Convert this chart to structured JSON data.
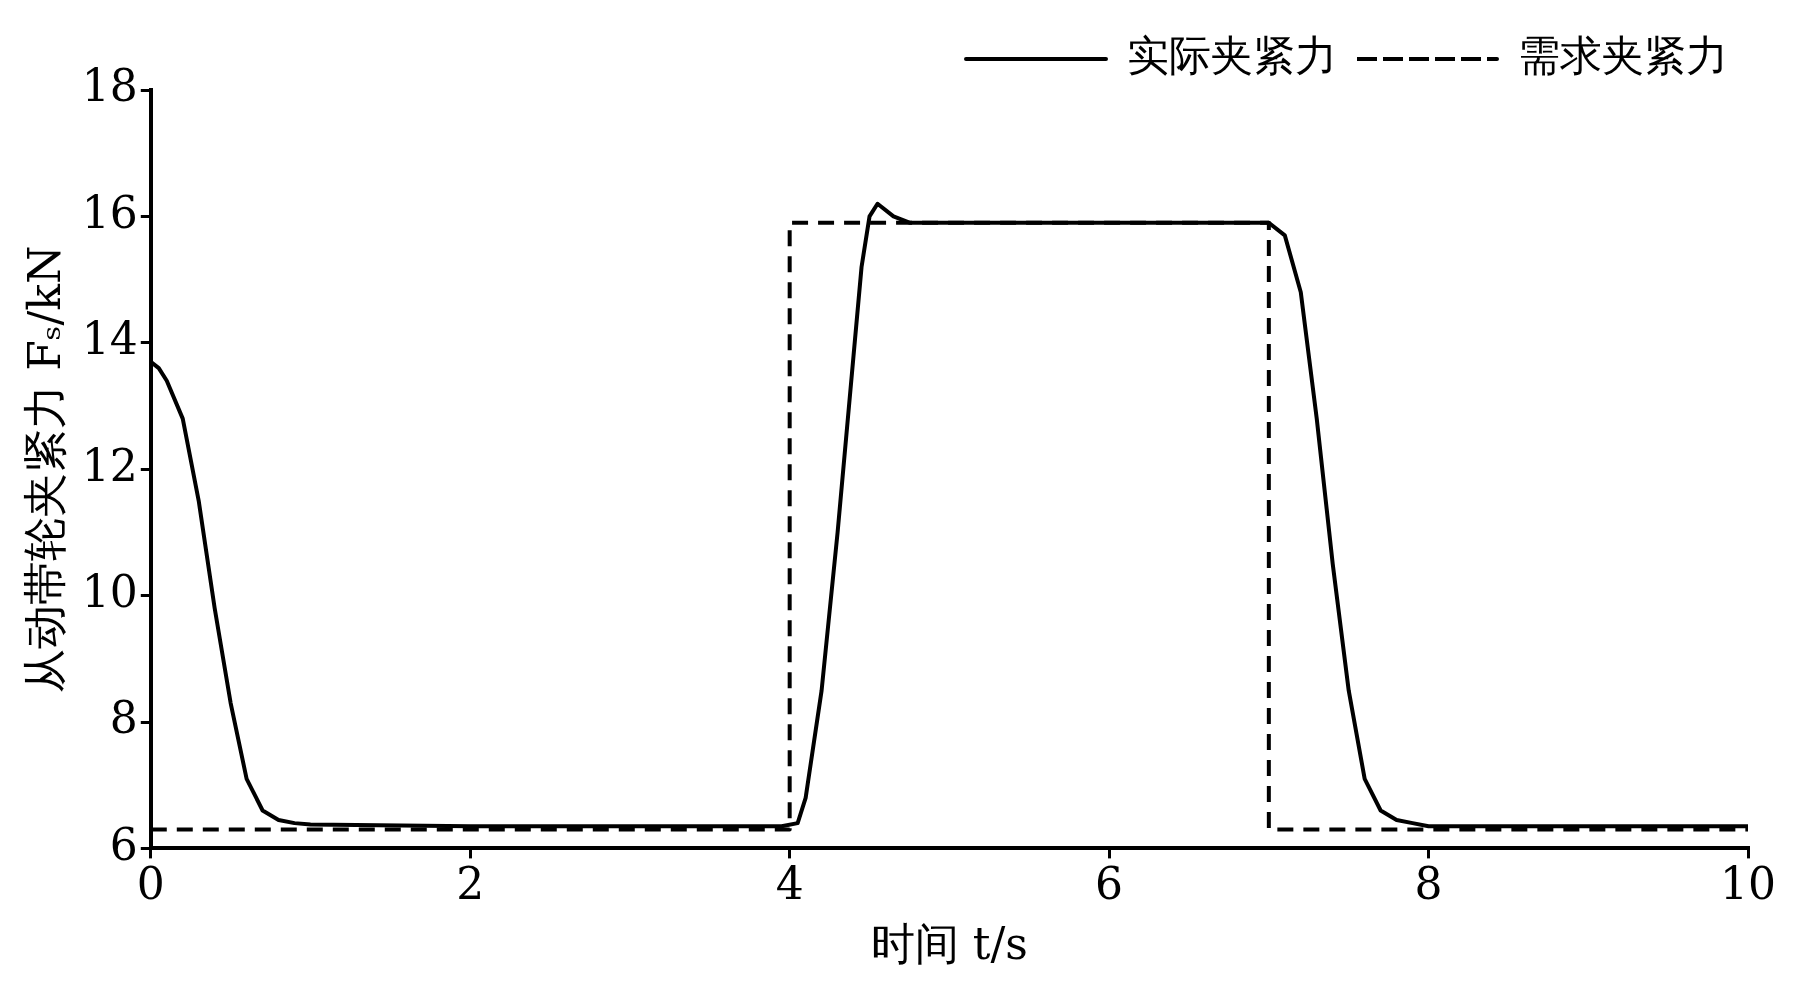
{
  "chart_data": {
    "type": "line",
    "xlabel": "时间 t/s",
    "ylabel": "从动带轮夹紧力 Fₛ/kN",
    "xlim": [
      0,
      10
    ],
    "xticks": [
      0,
      2,
      4,
      6,
      8,
      10
    ],
    "ylim": [
      6,
      18
    ],
    "yticks": [
      6,
      8,
      10,
      12,
      14,
      16,
      18
    ],
    "grid": false,
    "legend": "top right",
    "marker": "none",
    "series": [
      {
        "name": "实际夹紧力",
        "color": "#000000",
        "line_style": "solid",
        "x": [
          0,
          0.05,
          0.1,
          0.2,
          0.3,
          0.4,
          0.5,
          0.6,
          0.7,
          0.8,
          0.9,
          1.0,
          2.0,
          3.0,
          3.95,
          4.05,
          4.1,
          4.2,
          4.3,
          4.4,
          4.45,
          4.5,
          4.55,
          4.65,
          4.75,
          5.5,
          6.5,
          7.0,
          7.1,
          7.2,
          7.3,
          7.4,
          7.5,
          7.6,
          7.7,
          7.8,
          7.9,
          8.0,
          9.0,
          10.0
        ],
        "values": [
          13.7,
          13.6,
          13.4,
          12.8,
          11.5,
          9.8,
          8.3,
          7.1,
          6.6,
          6.45,
          6.4,
          6.38,
          6.35,
          6.35,
          6.35,
          6.4,
          6.8,
          8.5,
          11,
          13.8,
          15.2,
          16,
          16.2,
          16,
          15.9,
          15.9,
          15.9,
          15.9,
          15.7,
          14.8,
          12.8,
          10.5,
          8.5,
          7.1,
          6.6,
          6.45,
          6.4,
          6.35,
          6.35,
          6.35
        ]
      },
      {
        "name": "需求夹紧力",
        "color": "#000000",
        "line_style": "dashed",
        "x": [
          0,
          4,
          4,
          7,
          7,
          10
        ],
        "values": [
          6.3,
          6.3,
          15.9,
          15.9,
          6.3,
          6.3
        ]
      }
    ]
  }
}
